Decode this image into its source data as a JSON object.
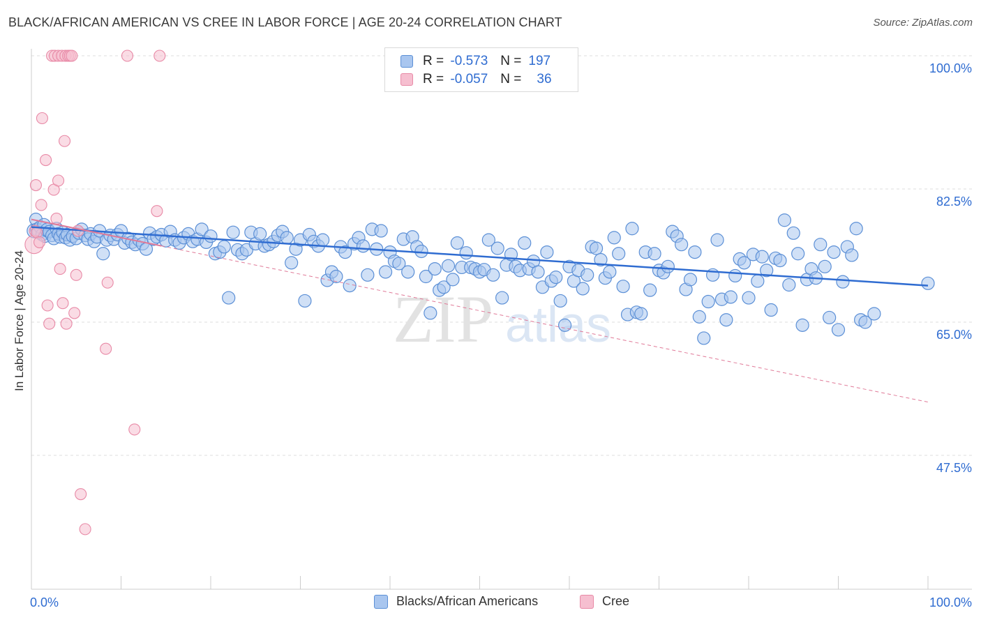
{
  "header": {
    "title": "BLACK/AFRICAN AMERICAN VS CREE IN LABOR FORCE | AGE 20-24 CORRELATION CHART",
    "source": "Source: ZipAtlas.com"
  },
  "legend_top": {
    "rows": [
      {
        "r_label": "R =",
        "r_value": "-0.573",
        "n_label": "N =",
        "n_value": "197"
      },
      {
        "r_label": "R =",
        "r_value": "-0.057",
        "n_label": "N =",
        "n_value": "36"
      }
    ]
  },
  "legend_bottom": {
    "items": [
      "Blacks/African Americans",
      "Cree"
    ]
  },
  "watermark": {
    "zip": "ZIP",
    "atlas": "atlas"
  },
  "colors": {
    "blue_fill": "#a9c6ef",
    "blue_stroke": "#5b8fd6",
    "blue_line": "#2f6cd1",
    "pink_fill": "#f6bfd0",
    "pink_stroke": "#e889a6",
    "pink_line": "#e07a98",
    "axis_text": "#2f6cd1"
  },
  "chart_data": {
    "type": "scatter",
    "title": "BLACK/AFRICAN AMERICAN VS CREE IN LABOR FORCE | AGE 20-24 CORRELATION CHART",
    "xlabel": "",
    "ylabel": "In Labor Force | Age 20-24",
    "xlim": [
      0,
      100
    ],
    "ylim": [
      30,
      101.5
    ],
    "x_tick_labels": [
      "0.0%",
      "100.0%"
    ],
    "y_ticks": [
      47.5,
      65.0,
      82.5,
      100.0
    ],
    "y_tick_labels": [
      "47.5%",
      "65.0%",
      "82.5%",
      "100.0%"
    ],
    "grid": true,
    "series": [
      {
        "name": "Blacks/African Americans",
        "r": -0.573,
        "n": 197,
        "trend": {
          "x": [
            0,
            100
          ],
          "y": [
            77.5,
            69.8
          ]
        },
        "points": [
          [
            0.3,
            77.0
          ],
          [
            0.5,
            78.5
          ],
          [
            0.6,
            77.2
          ],
          [
            0.8,
            76.8
          ],
          [
            1.0,
            77.5
          ],
          [
            1.2,
            76.5
          ],
          [
            1.4,
            77.8
          ],
          [
            1.5,
            76.3
          ],
          [
            1.8,
            77.1
          ],
          [
            2.0,
            76.9
          ],
          [
            2.3,
            76.4
          ],
          [
            2.5,
            76.0
          ],
          [
            2.8,
            77.3
          ],
          [
            3.0,
            76.6
          ],
          [
            3.2,
            76.2
          ],
          [
            3.5,
            76.8
          ],
          [
            3.8,
            76.1
          ],
          [
            4.0,
            76.5
          ],
          [
            4.3,
            75.8
          ],
          [
            4.6,
            76.3
          ],
          [
            5.0,
            76.0
          ],
          [
            5.3,
            76.7
          ],
          [
            5.6,
            77.2
          ],
          [
            6.0,
            76.4
          ],
          [
            6.3,
            75.9
          ],
          [
            6.6,
            76.6
          ],
          [
            7.0,
            75.6
          ],
          [
            7.3,
            76.2
          ],
          [
            7.6,
            77.0
          ],
          [
            8.0,
            74.0
          ],
          [
            8.4,
            75.8
          ],
          [
            8.8,
            76.4
          ],
          [
            9.2,
            75.9
          ],
          [
            9.6,
            76.5
          ],
          [
            10.0,
            77.0
          ],
          [
            10.4,
            75.4
          ],
          [
            10.8,
            76.0
          ],
          [
            11.2,
            75.5
          ],
          [
            11.6,
            75.2
          ],
          [
            12.0,
            75.8
          ],
          [
            12.4,
            75.3
          ],
          [
            12.8,
            74.6
          ],
          [
            13.2,
            76.7
          ],
          [
            13.6,
            75.9
          ],
          [
            14.0,
            76.2
          ],
          [
            14.5,
            76.5
          ],
          [
            15.0,
            75.7
          ],
          [
            15.5,
            76.9
          ],
          [
            16.0,
            75.8
          ],
          [
            16.5,
            75.4
          ],
          [
            17.0,
            76.1
          ],
          [
            17.5,
            76.6
          ],
          [
            18.0,
            75.6
          ],
          [
            18.5,
            75.9
          ],
          [
            19.0,
            77.2
          ],
          [
            19.5,
            75.5
          ],
          [
            20.0,
            76.3
          ],
          [
            20.5,
            74.0
          ],
          [
            21.0,
            74.2
          ],
          [
            21.5,
            74.9
          ],
          [
            22.0,
            68.2
          ],
          [
            22.5,
            76.8
          ],
          [
            23.0,
            74.5
          ],
          [
            23.5,
            74.0
          ],
          [
            24.0,
            74.5
          ],
          [
            24.5,
            76.8
          ],
          [
            25.0,
            75.3
          ],
          [
            25.5,
            76.6
          ],
          [
            26.0,
            75.0
          ],
          [
            26.5,
            75.2
          ],
          [
            27.0,
            75.6
          ],
          [
            27.5,
            76.4
          ],
          [
            28.0,
            76.9
          ],
          [
            28.5,
            76.1
          ],
          [
            29.0,
            72.8
          ],
          [
            29.5,
            74.6
          ],
          [
            30.0,
            75.8
          ],
          [
            30.5,
            67.8
          ],
          [
            31.0,
            76.5
          ],
          [
            31.5,
            75.6
          ],
          [
            32.0,
            75.0
          ],
          [
            32.5,
            75.8
          ],
          [
            33.0,
            70.5
          ],
          [
            33.5,
            71.6
          ],
          [
            34.0,
            71.0
          ],
          [
            34.5,
            74.9
          ],
          [
            35.0,
            74.2
          ],
          [
            35.5,
            69.8
          ],
          [
            36.0,
            75.3
          ],
          [
            36.5,
            76.1
          ],
          [
            37.0,
            75.0
          ],
          [
            37.5,
            71.2
          ],
          [
            38.0,
            77.2
          ],
          [
            38.5,
            74.6
          ],
          [
            39.0,
            77.0
          ],
          [
            39.5,
            71.6
          ],
          [
            40.0,
            74.2
          ],
          [
            40.5,
            73.0
          ],
          [
            41.0,
            72.7
          ],
          [
            41.5,
            75.9
          ],
          [
            42.0,
            71.6
          ],
          [
            42.5,
            76.2
          ],
          [
            43.0,
            74.9
          ],
          [
            43.5,
            74.3
          ],
          [
            44.0,
            71.0
          ],
          [
            44.5,
            66.2
          ],
          [
            45.0,
            72.0
          ],
          [
            45.5,
            69.2
          ],
          [
            46.0,
            69.6
          ],
          [
            46.5,
            72.4
          ],
          [
            47.0,
            70.6
          ],
          [
            47.5,
            75.4
          ],
          [
            48.0,
            72.2
          ],
          [
            48.5,
            74.1
          ],
          [
            49.0,
            72.2
          ],
          [
            49.5,
            72.0
          ],
          [
            50.0,
            71.6
          ],
          [
            50.5,
            71.9
          ],
          [
            51.0,
            75.8
          ],
          [
            51.5,
            71.2
          ],
          [
            52.0,
            74.7
          ],
          [
            52.5,
            68.2
          ],
          [
            53.0,
            72.5
          ],
          [
            53.5,
            73.9
          ],
          [
            54.0,
            72.3
          ],
          [
            54.5,
            71.8
          ],
          [
            55.0,
            75.4
          ],
          [
            55.5,
            72.0
          ],
          [
            56.0,
            73.0
          ],
          [
            56.5,
            71.6
          ],
          [
            57.0,
            69.6
          ],
          [
            57.5,
            74.2
          ],
          [
            58.0,
            70.4
          ],
          [
            58.5,
            70.9
          ],
          [
            59.0,
            67.8
          ],
          [
            59.5,
            64.6
          ],
          [
            60.0,
            72.3
          ],
          [
            60.5,
            70.4
          ],
          [
            61.0,
            71.8
          ],
          [
            61.5,
            69.4
          ],
          [
            62.0,
            71.2
          ],
          [
            62.5,
            74.9
          ],
          [
            63.0,
            74.7
          ],
          [
            63.5,
            73.2
          ],
          [
            64.0,
            70.8
          ],
          [
            64.5,
            71.6
          ],
          [
            65.0,
            76.1
          ],
          [
            65.5,
            74.0
          ],
          [
            66.0,
            69.7
          ],
          [
            66.5,
            66.0
          ],
          [
            67.0,
            77.3
          ],
          [
            67.5,
            66.3
          ],
          [
            68.0,
            66.1
          ],
          [
            68.5,
            74.2
          ],
          [
            69.0,
            69.2
          ],
          [
            69.5,
            74.0
          ],
          [
            70.0,
            71.8
          ],
          [
            70.5,
            71.5
          ],
          [
            71.0,
            72.3
          ],
          [
            71.5,
            76.9
          ],
          [
            72.0,
            76.3
          ],
          [
            72.5,
            75.2
          ],
          [
            73.0,
            69.3
          ],
          [
            73.5,
            70.6
          ],
          [
            74.0,
            74.2
          ],
          [
            74.5,
            65.7
          ],
          [
            75.0,
            62.9
          ],
          [
            75.5,
            67.7
          ],
          [
            76.0,
            71.2
          ],
          [
            76.5,
            75.8
          ],
          [
            77.0,
            68.0
          ],
          [
            77.5,
            65.3
          ],
          [
            78.0,
            68.3
          ],
          [
            78.5,
            71.1
          ],
          [
            79.0,
            73.3
          ],
          [
            79.5,
            72.8
          ],
          [
            80.0,
            68.2
          ],
          [
            80.5,
            73.9
          ],
          [
            81.0,
            70.4
          ],
          [
            81.5,
            73.6
          ],
          [
            82.0,
            71.8
          ],
          [
            82.5,
            66.6
          ],
          [
            83.0,
            73.4
          ],
          [
            83.5,
            73.1
          ],
          [
            84.0,
            78.4
          ],
          [
            84.5,
            69.9
          ],
          [
            85.0,
            76.7
          ],
          [
            85.5,
            74.0
          ],
          [
            86.0,
            64.6
          ],
          [
            86.5,
            70.6
          ],
          [
            87.0,
            72.0
          ],
          [
            87.5,
            70.8
          ],
          [
            88.0,
            75.2
          ],
          [
            88.5,
            72.3
          ],
          [
            89.0,
            65.6
          ],
          [
            89.5,
            74.2
          ],
          [
            90.0,
            64.0
          ],
          [
            90.5,
            70.3
          ],
          [
            91.0,
            74.9
          ],
          [
            91.5,
            73.8
          ],
          [
            92.0,
            77.3
          ],
          [
            92.5,
            65.3
          ],
          [
            93.0,
            65.0
          ],
          [
            94.0,
            66.1
          ],
          [
            100.0,
            70.1
          ]
        ]
      },
      {
        "name": "Cree",
        "r": -0.057,
        "n": 36,
        "trend": {
          "x": [
            0,
            100
          ],
          "y": [
            78.5,
            54.5
          ]
        },
        "points": [
          [
            0.3,
            75.2
          ],
          [
            0.4,
            77.0
          ],
          [
            0.5,
            83.0
          ],
          [
            0.6,
            76.8
          ],
          [
            0.9,
            75.5
          ],
          [
            1.1,
            80.4
          ],
          [
            1.2,
            91.8
          ],
          [
            1.6,
            86.3
          ],
          [
            1.8,
            67.2
          ],
          [
            2.0,
            64.8
          ],
          [
            2.3,
            100.0
          ],
          [
            2.5,
            82.4
          ],
          [
            2.6,
            100.0
          ],
          [
            2.8,
            78.6
          ],
          [
            3.0,
            83.6
          ],
          [
            3.0,
            100.0
          ],
          [
            3.2,
            72.0
          ],
          [
            3.4,
            100.0
          ],
          [
            3.5,
            67.5
          ],
          [
            3.7,
            88.8
          ],
          [
            3.8,
            100.0
          ],
          [
            3.9,
            64.8
          ],
          [
            4.1,
            100.0
          ],
          [
            4.3,
            100.0
          ],
          [
            4.5,
            100.0
          ],
          [
            4.8,
            66.2
          ],
          [
            5.0,
            71.2
          ],
          [
            5.2,
            77.0
          ],
          [
            5.5,
            42.4
          ],
          [
            6.0,
            37.8
          ],
          [
            8.3,
            61.5
          ],
          [
            8.5,
            70.2
          ],
          [
            10.7,
            100.0
          ],
          [
            11.5,
            50.9
          ],
          [
            14.0,
            79.6
          ],
          [
            14.3,
            100.0
          ]
        ]
      }
    ]
  }
}
